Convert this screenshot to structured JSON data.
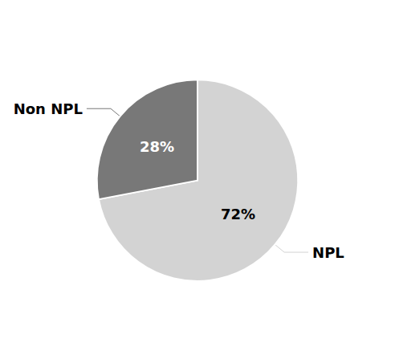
{
  "chart_data": {
    "type": "pie",
    "categories": [
      "NPL",
      "Non NPL"
    ],
    "values": [
      72,
      28
    ],
    "value_labels": [
      "72%",
      "28%"
    ],
    "colors": [
      "#d3d3d3",
      "#787878"
    ],
    "data_labels": true
  }
}
